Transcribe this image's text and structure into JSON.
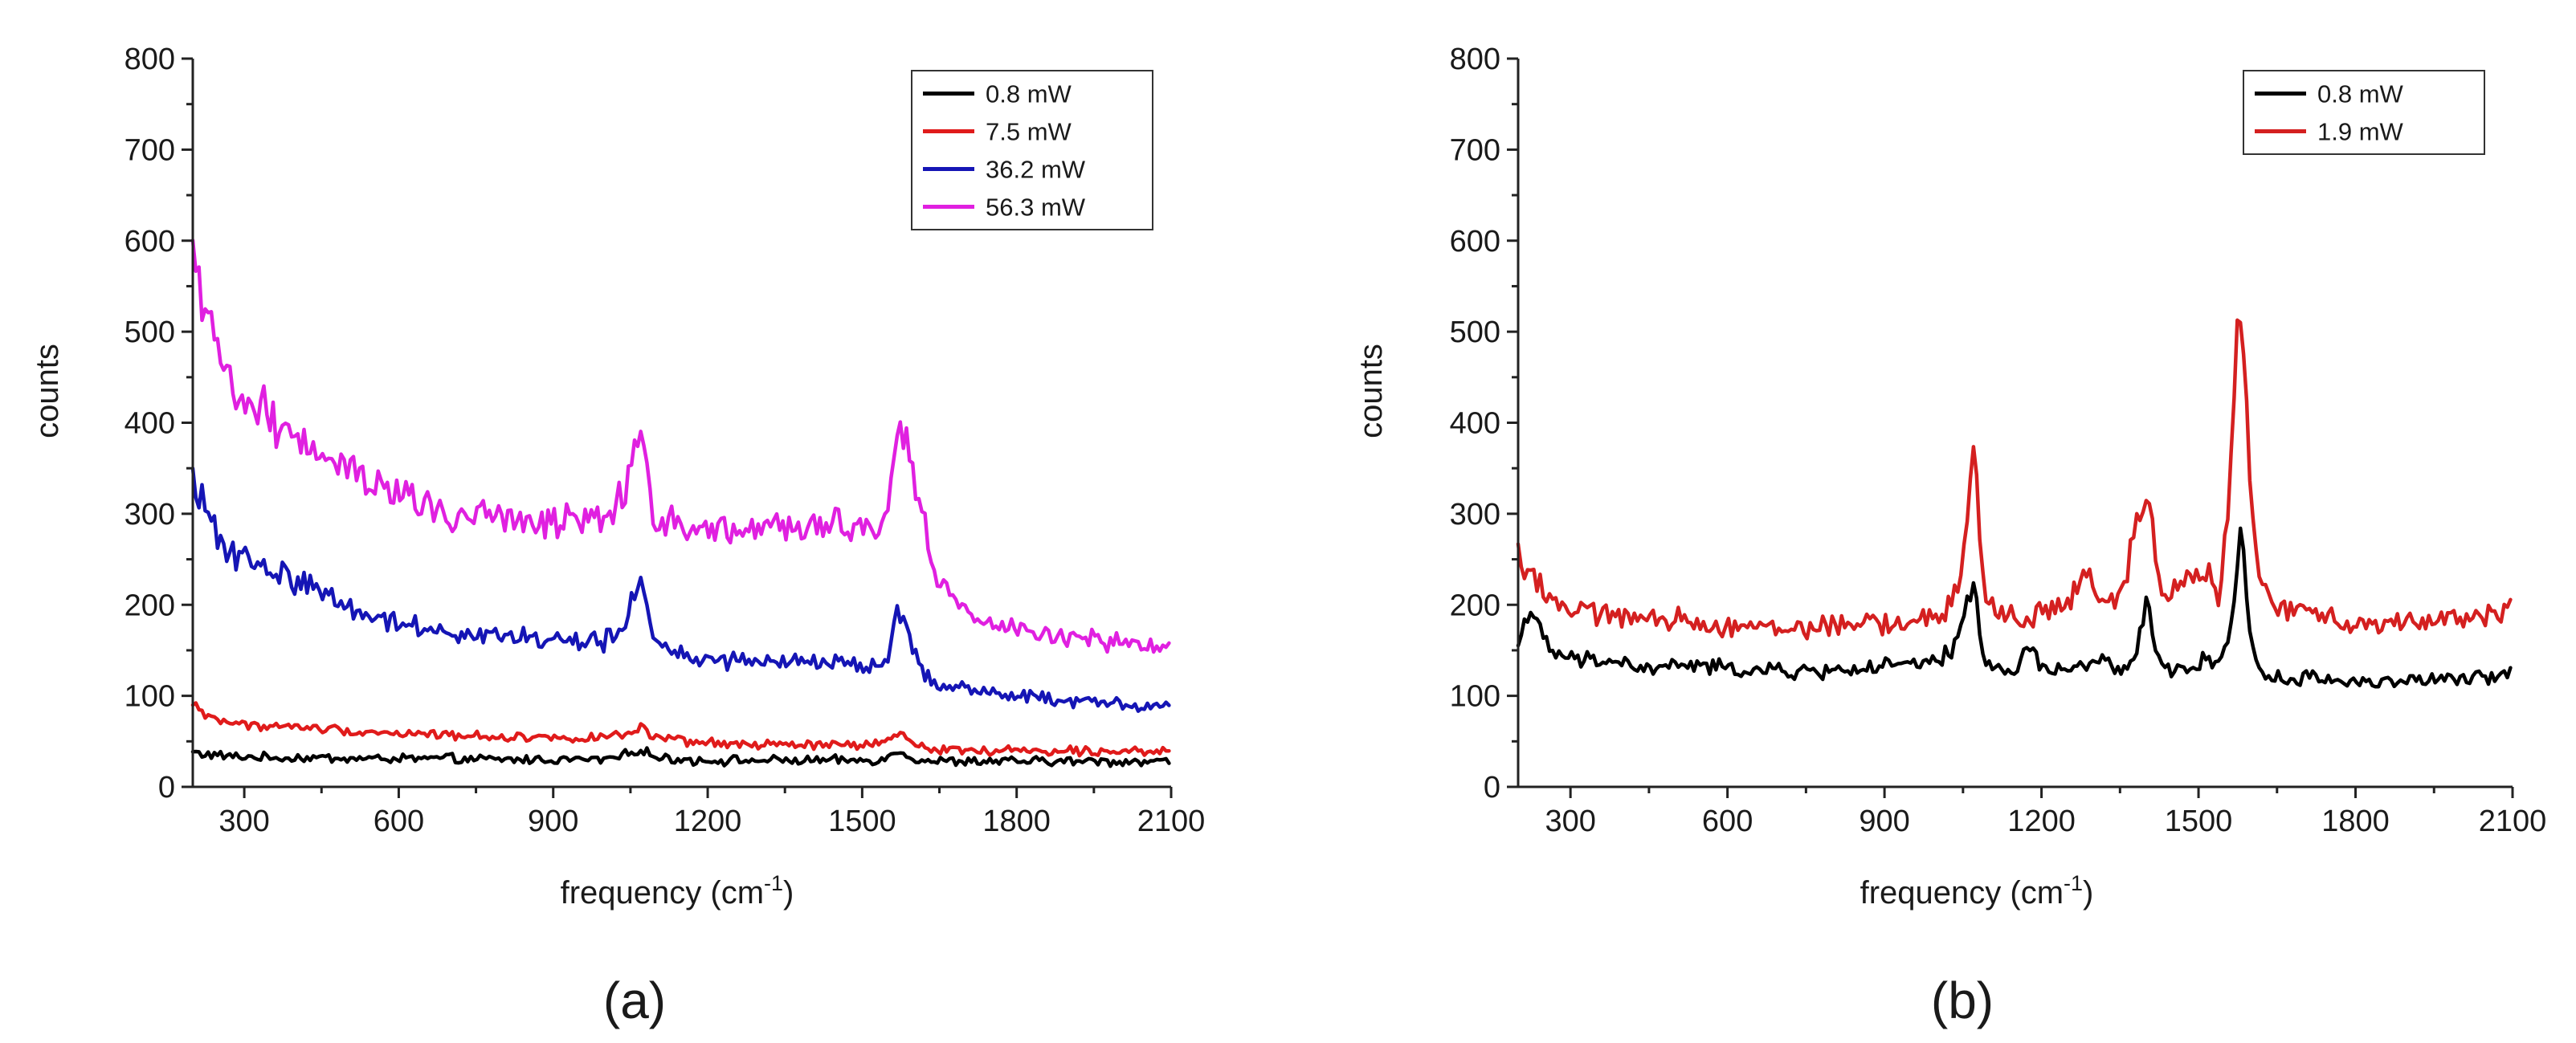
{
  "chart_data": [
    {
      "type": "line",
      "panel_label": "(a)",
      "xlabel": "frequency (cm",
      "xlabel_sup": "-1",
      "xlabel_close": ")",
      "ylabel": "counts",
      "xlim": [
        200,
        2100
      ],
      "ylim": [
        0,
        800
      ],
      "xticks": [
        300,
        600,
        900,
        1200,
        1500,
        1800,
        2100
      ],
      "yticks": [
        0,
        100,
        200,
        300,
        400,
        500,
        600,
        700,
        800
      ],
      "legend_position": "top-right",
      "x": [
        200,
        220,
        240,
        260,
        280,
        300,
        320,
        340,
        360,
        380,
        400,
        450,
        500,
        550,
        600,
        650,
        700,
        750,
        800,
        850,
        900,
        950,
        1000,
        1020,
        1040,
        1060,
        1070,
        1080,
        1100,
        1150,
        1200,
        1250,
        1300,
        1350,
        1400,
        1450,
        1500,
        1530,
        1550,
        1565,
        1575,
        1585,
        1600,
        1620,
        1650,
        1700,
        1750,
        1800,
        1850,
        1900,
        1950,
        2000,
        2050,
        2100
      ],
      "series": [
        {
          "name": "0.8 mW",
          "color": "#000000",
          "values": [
            38,
            36,
            35,
            34,
            33,
            33,
            33,
            32,
            32,
            32,
            32,
            32,
            31,
            31,
            31,
            31,
            31,
            30,
            30,
            30,
            30,
            30,
            30,
            32,
            35,
            40,
            42,
            38,
            32,
            30,
            29,
            29,
            29,
            29,
            29,
            29,
            29,
            30,
            32,
            38,
            40,
            36,
            31,
            29,
            28,
            28,
            28,
            28,
            28,
            28,
            28,
            28,
            28,
            28
          ]
        },
        {
          "name": "7.5 mW",
          "color": "#e01b1b",
          "values": [
            90,
            82,
            76,
            72,
            70,
            68,
            68,
            67,
            66,
            66,
            66,
            64,
            62,
            60,
            59,
            58,
            57,
            56,
            55,
            55,
            54,
            54,
            54,
            55,
            58,
            62,
            65,
            60,
            53,
            50,
            48,
            47,
            46,
            46,
            46,
            46,
            46,
            47,
            49,
            55,
            60,
            54,
            47,
            44,
            42,
            40,
            40,
            40,
            40,
            40,
            40,
            40,
            40,
            40
          ]
        },
        {
          "name": "36.2 mW",
          "color": "#1515b5",
          "values": [
            335,
            305,
            285,
            270,
            258,
            250,
            245,
            240,
            236,
            232,
            228,
            215,
            200,
            188,
            180,
            175,
            172,
            168,
            165,
            163,
            161,
            160,
            160,
            165,
            180,
            215,
            222,
            200,
            160,
            145,
            140,
            138,
            137,
            137,
            138,
            137,
            133,
            130,
            140,
            185,
            195,
            175,
            145,
            125,
            112,
            108,
            104,
            100,
            97,
            95,
            93,
            91,
            89,
            88
          ]
        },
        {
          "name": "56.3 mW",
          "color": "#e020e0",
          "values": [
            580,
            520,
            480,
            455,
            440,
            430,
            420,
            410,
            402,
            395,
            388,
            375,
            355,
            335,
            320,
            308,
            300,
            295,
            292,
            290,
            291,
            295,
            300,
            305,
            330,
            380,
            385,
            345,
            295,
            288,
            285,
            284,
            284,
            284,
            285,
            286,
            282,
            280,
            300,
            395,
            415,
            375,
            325,
            290,
            225,
            195,
            180,
            172,
            167,
            163,
            160,
            157,
            154,
            152
          ]
        }
      ]
    },
    {
      "type": "line",
      "panel_label": "(b)",
      "xlabel": "frequency (cm",
      "xlabel_sup": "-1",
      "xlabel_close": ")",
      "ylabel": "counts",
      "xlim": [
        200,
        2100
      ],
      "ylim": [
        0,
        800
      ],
      "xticks": [
        300,
        600,
        900,
        1200,
        1500,
        1800,
        2100
      ],
      "yticks": [
        0,
        100,
        200,
        300,
        400,
        500,
        600,
        700,
        800
      ],
      "legend_position": "top-right",
      "x": [
        200,
        220,
        240,
        260,
        280,
        300,
        340,
        380,
        420,
        460,
        500,
        550,
        600,
        650,
        700,
        750,
        800,
        850,
        900,
        950,
        1000,
        1030,
        1050,
        1060,
        1070,
        1080,
        1090,
        1110,
        1150,
        1180,
        1200,
        1250,
        1290,
        1310,
        1350,
        1380,
        1400,
        1410,
        1420,
        1440,
        1470,
        1500,
        1520,
        1540,
        1560,
        1570,
        1580,
        1590,
        1600,
        1620,
        1650,
        1700,
        1750,
        1800,
        1850,
        1900,
        1950,
        2000,
        2050,
        2100
      ],
      "series": [
        {
          "name": "0.8 mW",
          "color": "#000000",
          "values": [
            155,
            200,
            170,
            150,
            145,
            140,
            138,
            140,
            132,
            128,
            135,
            132,
            130,
            128,
            127,
            126,
            128,
            130,
            132,
            134,
            136,
            150,
            180,
            210,
            220,
            190,
            140,
            128,
            125,
            160,
            128,
            130,
            132,
            140,
            128,
            140,
            200,
            175,
            140,
            128,
            130,
            135,
            140,
            135,
            170,
            230,
            280,
            220,
            160,
            125,
            118,
            120,
            118,
            116,
            115,
            118,
            117,
            118,
            120,
            125
          ]
        },
        {
          "name": "1.9 mW",
          "color": "#d42020",
          "values": [
            255,
            240,
            225,
            210,
            200,
            195,
            188,
            192,
            185,
            180,
            185,
            180,
            178,
            176,
            175,
            175,
            177,
            178,
            180,
            182,
            185,
            200,
            240,
            320,
            375,
            300,
            220,
            190,
            188,
            185,
            192,
            200,
            240,
            200,
            200,
            285,
            320,
            300,
            240,
            215,
            225,
            245,
            230,
            200,
            330,
            450,
            540,
            440,
            300,
            220,
            200,
            190,
            185,
            182,
            180,
            182,
            185,
            188,
            190,
            192
          ]
        }
      ]
    }
  ]
}
